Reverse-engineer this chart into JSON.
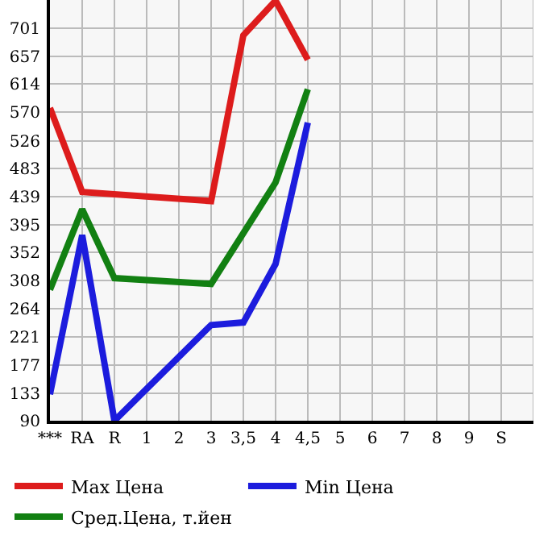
{
  "chart_data": {
    "type": "line",
    "categories": [
      "***",
      "RA",
      "R",
      "1",
      "2",
      "3",
      "3,5",
      "4",
      "4,5",
      "5",
      "6",
      "7",
      "8",
      "9",
      "S"
    ],
    "series": [
      {
        "name": "Max Цена",
        "color": "#dd1c1c",
        "values": [
          577,
          446,
          null,
          null,
          null,
          432,
          690,
          744,
          652,
          null,
          null,
          null,
          null,
          null,
          null
        ]
      },
      {
        "name": "Min Цена",
        "color": "#1c1cdd",
        "values": [
          131,
          379,
          90,
          null,
          null,
          239,
          243,
          334,
          554,
          null,
          null,
          null,
          null,
          null,
          null
        ]
      },
      {
        "name": "Сред.Цена, т.йен",
        "color": "#128012",
        "values": [
          294,
          419,
          312,
          null,
          null,
          303,
          null,
          461,
          606,
          null,
          null,
          null,
          null,
          null,
          null
        ]
      }
    ],
    "ylim": [
      90,
      745
    ],
    "yticks": [
      90,
      133,
      177,
      221,
      264,
      308,
      352,
      395,
      439,
      483,
      526,
      570,
      614,
      657,
      701
    ],
    "grid": true,
    "legend": "bottom",
    "marker": "none",
    "line_style": "solid"
  }
}
